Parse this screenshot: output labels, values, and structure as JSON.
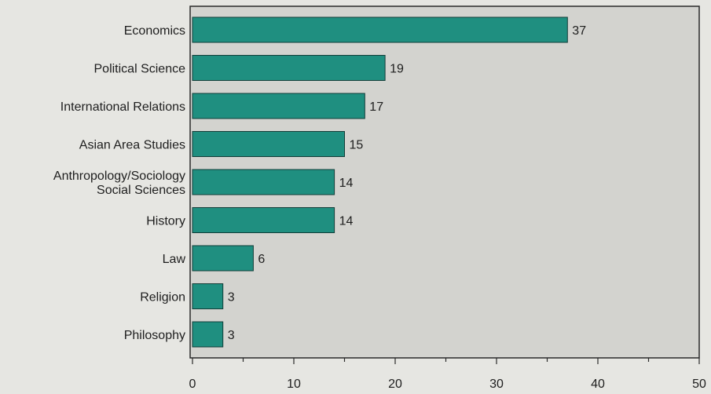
{
  "chart_data": {
    "type": "bar",
    "orientation": "horizontal",
    "categories": [
      "Economics",
      "Political Science",
      "International Relations",
      "Asian Area Studies",
      "Anthropology/Sociology\nSocial Sciences",
      "History",
      "Law",
      "Religion",
      "Philosophy"
    ],
    "values": [
      37,
      19,
      17,
      15,
      14,
      14,
      6,
      3,
      3
    ],
    "xlim": [
      0,
      50
    ],
    "xticks": [
      0,
      10,
      20,
      30,
      40,
      50
    ],
    "grid": false,
    "title": "",
    "xlabel": "",
    "ylabel": ""
  },
  "colors": {
    "bar": "#1f8f80",
    "bar_edge": "#123d38",
    "plot_bg": "#d3d3cf",
    "page_bg": "#e6e6e2",
    "axis": "#2a2a2a",
    "text": "#1e1e1e"
  }
}
